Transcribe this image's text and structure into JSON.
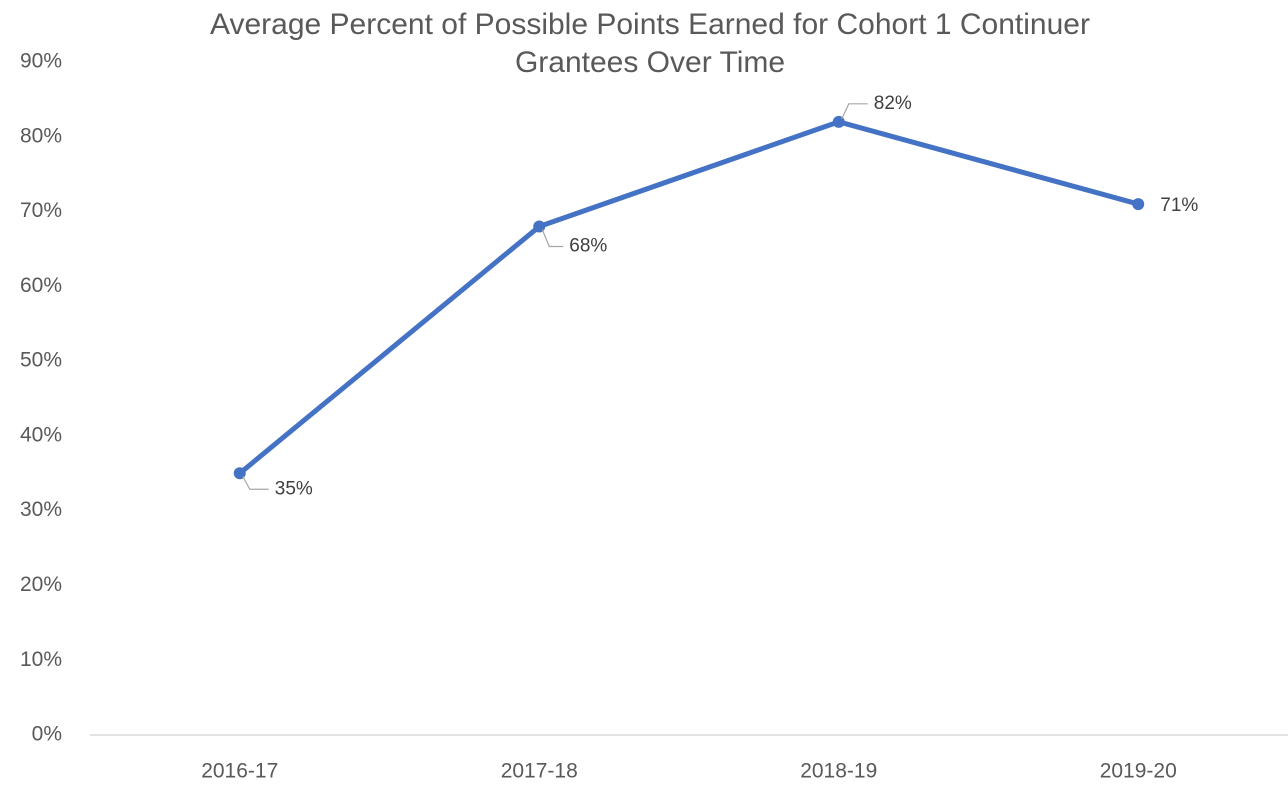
{
  "chart_data": {
    "type": "line",
    "title": "Average Percent of Possible Points Earned for Cohort 1 Continuer Grantees Over Time",
    "categories": [
      "2016-17",
      "2017-18",
      "2018-19",
      "2019-20"
    ],
    "values": [
      35,
      68,
      82,
      71
    ],
    "value_labels": [
      "35%",
      "68%",
      "82%",
      "71%"
    ],
    "color": "#4472c4",
    "ylim": [
      0,
      90
    ],
    "yticks": [
      {
        "value": 0,
        "label": "0%"
      },
      {
        "value": 10,
        "label": "10%"
      },
      {
        "value": 20,
        "label": "20%"
      },
      {
        "value": 30,
        "label": "30%"
      },
      {
        "value": 40,
        "label": "40%"
      },
      {
        "value": 50,
        "label": "50%"
      },
      {
        "value": 60,
        "label": "60%"
      },
      {
        "value": 70,
        "label": "70%"
      },
      {
        "value": 80,
        "label": "80%"
      },
      {
        "value": 90,
        "label": "90%"
      }
    ],
    "grid": false
  }
}
